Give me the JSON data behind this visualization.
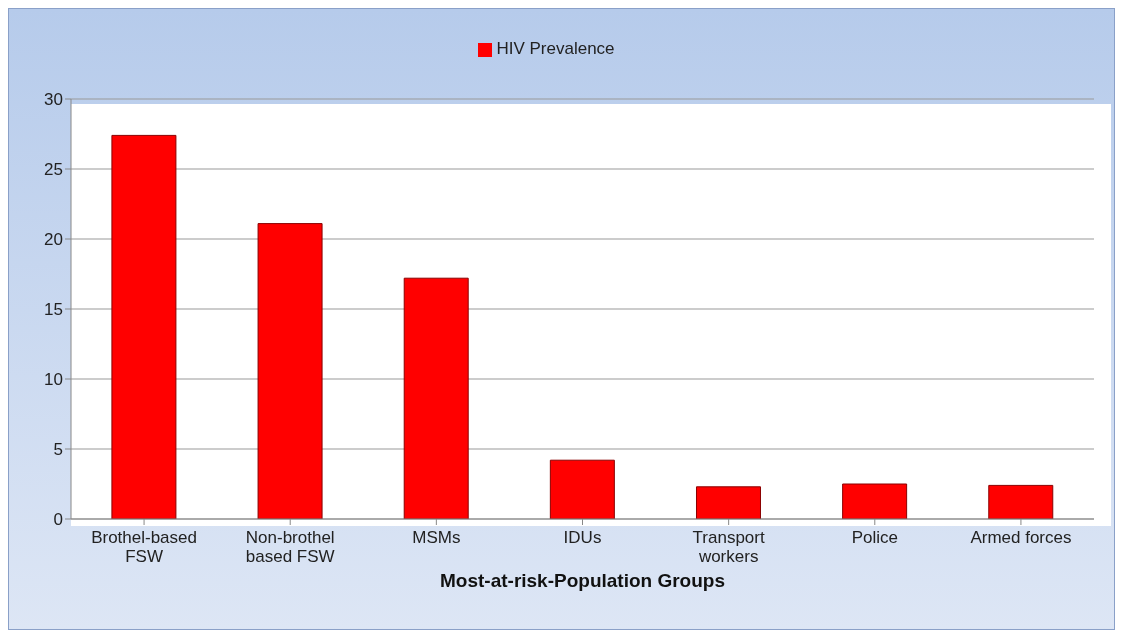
{
  "chart_data": {
    "type": "bar",
    "xlabel": "Most-at-risk-Population Groups",
    "categories": [
      "Brothel-based FSW",
      "Non-brothel based FSW",
      "MSMs",
      "IDUs",
      "Transport workers",
      "Police",
      "Armed forces"
    ],
    "series": [
      {
        "name": "HIV Prevalence",
        "color": "#ff0000",
        "values": [
          27.4,
          21.1,
          17.2,
          4.2,
          2.3,
          2.5,
          2.4
        ]
      }
    ],
    "ylim": [
      0,
      30
    ],
    "yticks": [
      0,
      5,
      10,
      15,
      20,
      25,
      30
    ],
    "grid": "y",
    "legend": "top"
  }
}
